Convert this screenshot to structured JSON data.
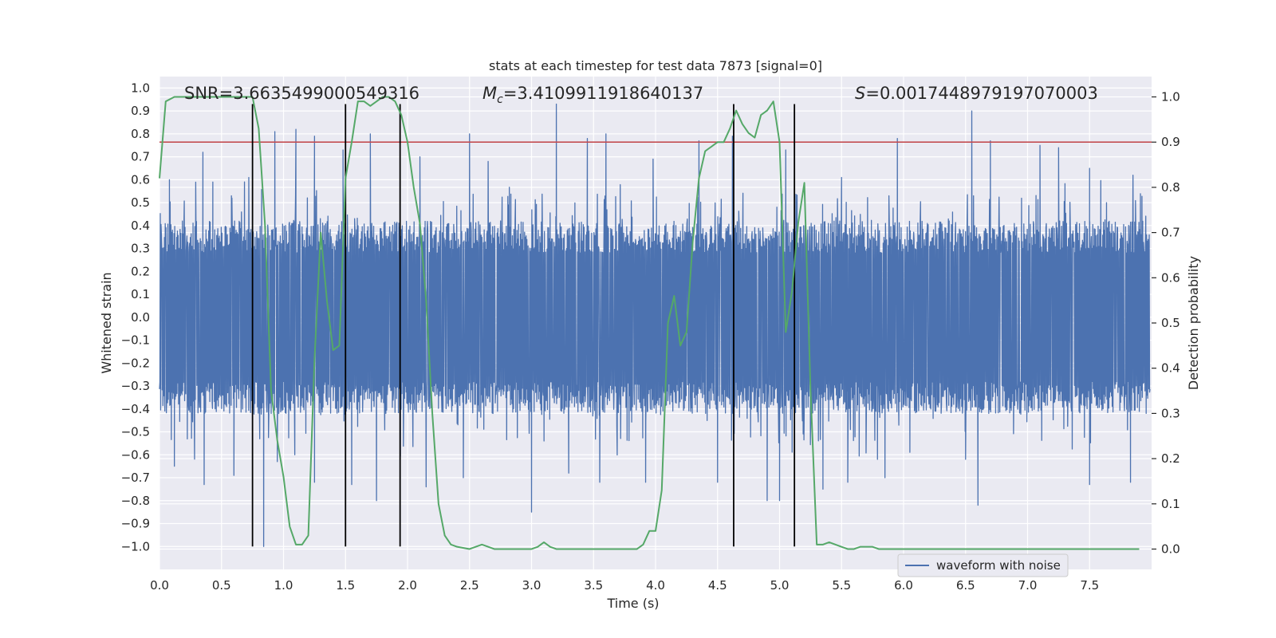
{
  "chart_data": {
    "type": "line",
    "title": "stats at each timestep for test data 7873 [signal=0]",
    "xlabel": "Time (s)",
    "ylabel": "Whitened strain",
    "y2label": "Detection probability",
    "xlim": [
      0.0,
      8.0
    ],
    "ylim": [
      -1.1,
      1.05
    ],
    "y2lim": [
      -0.045,
      1.045
    ],
    "xticks": [
      0.0,
      0.5,
      1.0,
      1.5,
      2.0,
      2.5,
      3.0,
      3.5,
      4.0,
      4.5,
      5.0,
      5.5,
      6.0,
      6.5,
      7.0,
      7.5
    ],
    "xtick_labels": [
      "0.0",
      "0.5",
      "1.0",
      "1.5",
      "2.0",
      "2.5",
      "3.0",
      "3.5",
      "4.0",
      "4.5",
      "5.0",
      "5.5",
      "6.0",
      "6.5",
      "7.0",
      "7.5"
    ],
    "yticks": [
      1.0,
      0.9,
      0.8,
      0.7,
      0.6,
      0.5,
      0.4,
      0.3,
      0.2,
      0.1,
      0.0,
      -0.1,
      -0.2,
      -0.3,
      -0.4,
      -0.5,
      -0.6,
      -0.7,
      -0.8,
      -0.9,
      -1.0
    ],
    "ytick_labels": [
      "1.0",
      "0.9",
      "0.8",
      "0.7",
      "0.6",
      "0.5",
      "0.4",
      "0.3",
      "0.2",
      "0.1",
      "0.0",
      "−0.1",
      "−0.2",
      "−0.3",
      "−0.4",
      "−0.5",
      "−0.6",
      "−0.7",
      "−0.8",
      "−0.9",
      "−1.0"
    ],
    "y2ticks": [
      1.0,
      0.9,
      0.8,
      0.7,
      0.6,
      0.5,
      0.4,
      0.3,
      0.2,
      0.1,
      0.0
    ],
    "y2tick_labels": [
      "1.0",
      "0.9",
      "0.8",
      "0.7",
      "0.6",
      "0.5",
      "0.4",
      "0.3",
      "0.2",
      "0.1",
      "0.0"
    ],
    "annotations": {
      "snr": "SNR=3.6635499000549316",
      "mc_symbol": "M",
      "mc_subscript": "c",
      "mc_value": "=3.4109911918640137",
      "s_symbol": "S",
      "s_value": "=0.0017448979197070003"
    },
    "threshold": {
      "value": 0.9,
      "color": "#c44e52",
      "axis": "right"
    },
    "vertical_lines": [
      0.75,
      1.5,
      1.94,
      4.63,
      5.12
    ],
    "vertical_line_range": [
      -1.0,
      0.93
    ],
    "legend": {
      "label": "waveform with noise",
      "location": "lower-right"
    },
    "colors": {
      "waveform": "#4c72b0",
      "probability": "#55a868",
      "vlines": "#000000",
      "background": "#eaeaf2",
      "grid": "#ffffff"
    },
    "waveform": {
      "name": "waveform with noise",
      "description_of_sampling": "noise; band roughly -0.45..0.45 with spikes",
      "peaks": [
        {
          "t": 0.08,
          "v": 0.6
        },
        {
          "t": 0.35,
          "v": 0.72
        },
        {
          "t": 0.43,
          "v": 0.59
        },
        {
          "t": 0.58,
          "v": 0.53
        },
        {
          "t": 0.72,
          "v": 0.61
        },
        {
          "t": 0.93,
          "v": 0.81
        },
        {
          "t": 1.1,
          "v": 0.82
        },
        {
          "t": 1.25,
          "v": 0.79
        },
        {
          "t": 1.48,
          "v": 0.73
        },
        {
          "t": 1.7,
          "v": 0.8
        },
        {
          "t": 2.1,
          "v": 0.7
        },
        {
          "t": 2.5,
          "v": 0.8
        },
        {
          "t": 2.65,
          "v": 0.68
        },
        {
          "t": 3.2,
          "v": 0.93
        },
        {
          "t": 3.45,
          "v": 0.78
        },
        {
          "t": 3.6,
          "v": 0.8
        },
        {
          "t": 3.98,
          "v": 0.69
        },
        {
          "t": 4.35,
          "v": 0.77
        },
        {
          "t": 4.62,
          "v": 0.79
        },
        {
          "t": 5.05,
          "v": 0.73
        },
        {
          "t": 5.5,
          "v": 0.61
        },
        {
          "t": 5.95,
          "v": 0.78
        },
        {
          "t": 6.55,
          "v": 0.9
        },
        {
          "t": 6.7,
          "v": 0.77
        },
        {
          "t": 7.1,
          "v": 0.75
        },
        {
          "t": 7.25,
          "v": 0.74
        },
        {
          "t": 7.5,
          "v": 0.65
        },
        {
          "t": 7.85,
          "v": 0.62
        }
      ],
      "troughs": [
        {
          "t": 0.12,
          "v": -0.65
        },
        {
          "t": 0.36,
          "v": -0.73
        },
        {
          "t": 0.6,
          "v": -0.69
        },
        {
          "t": 0.84,
          "v": -1.0
        },
        {
          "t": 0.95,
          "v": -0.63
        },
        {
          "t": 1.25,
          "v": -0.72
        },
        {
          "t": 1.55,
          "v": -0.73
        },
        {
          "t": 1.75,
          "v": -0.8
        },
        {
          "t": 2.15,
          "v": -0.74
        },
        {
          "t": 2.45,
          "v": -0.7
        },
        {
          "t": 3.0,
          "v": -0.85
        },
        {
          "t": 3.3,
          "v": -0.68
        },
        {
          "t": 3.55,
          "v": -0.72
        },
        {
          "t": 3.92,
          "v": -0.72
        },
        {
          "t": 4.5,
          "v": -0.72
        },
        {
          "t": 4.9,
          "v": -0.8
        },
        {
          "t": 5.0,
          "v": -0.8
        },
        {
          "t": 5.35,
          "v": -0.75
        },
        {
          "t": 5.55,
          "v": -0.72
        },
        {
          "t": 5.85,
          "v": -0.7
        },
        {
          "t": 6.5,
          "v": -0.62
        },
        {
          "t": 6.6,
          "v": -0.82
        },
        {
          "t": 7.5,
          "v": -0.73
        },
        {
          "t": 7.83,
          "v": -0.72
        }
      ]
    },
    "probability": {
      "name": "Detection probability",
      "x": [
        0.0,
        0.05,
        0.12,
        0.2,
        0.3,
        0.4,
        0.5,
        0.6,
        0.7,
        0.75,
        0.8,
        0.85,
        0.9,
        0.95,
        1.0,
        1.05,
        1.1,
        1.15,
        1.2,
        1.25,
        1.3,
        1.35,
        1.4,
        1.45,
        1.5,
        1.55,
        1.6,
        1.65,
        1.7,
        1.75,
        1.8,
        1.85,
        1.9,
        1.95,
        2.0,
        2.05,
        2.1,
        2.15,
        2.2,
        2.25,
        2.3,
        2.35,
        2.4,
        2.5,
        2.6,
        2.7,
        2.75,
        2.8,
        2.9,
        3.0,
        3.05,
        3.1,
        3.15,
        3.2,
        3.3,
        3.4,
        3.5,
        3.6,
        3.7,
        3.75,
        3.8,
        3.85,
        3.9,
        3.95,
        4.0,
        4.05,
        4.1,
        4.15,
        4.2,
        4.25,
        4.3,
        4.35,
        4.4,
        4.45,
        4.5,
        4.55,
        4.6,
        4.65,
        4.7,
        4.75,
        4.8,
        4.85,
        4.9,
        4.95,
        5.0,
        5.05,
        5.1,
        5.15,
        5.2,
        5.25,
        5.3,
        5.35,
        5.4,
        5.45,
        5.5,
        5.55,
        5.6,
        5.65,
        5.7,
        5.75,
        5.8,
        5.9,
        6.0,
        6.2,
        6.5,
        7.0,
        7.3,
        7.5,
        7.9
      ],
      "values": [
        0.82,
        0.99,
        1.0,
        1.0,
        1.0,
        1.0,
        1.0,
        1.0,
        1.0,
        1.0,
        0.93,
        0.72,
        0.35,
        0.24,
        0.16,
        0.05,
        0.01,
        0.01,
        0.03,
        0.42,
        0.7,
        0.55,
        0.44,
        0.45,
        0.82,
        0.9,
        0.99,
        0.99,
        0.98,
        0.99,
        1.0,
        1.0,
        0.99,
        0.96,
        0.9,
        0.8,
        0.72,
        0.55,
        0.3,
        0.1,
        0.03,
        0.01,
        0.005,
        0.0,
        0.01,
        0.0,
        0.0,
        0.0,
        0.0,
        0.0,
        0.005,
        0.015,
        0.005,
        0.0,
        0.0,
        0.0,
        0.0,
        0.0,
        0.0,
        0.0,
        0.0,
        0.0,
        0.01,
        0.04,
        0.04,
        0.13,
        0.5,
        0.56,
        0.45,
        0.48,
        0.68,
        0.82,
        0.88,
        0.89,
        0.9,
        0.9,
        0.93,
        0.97,
        0.94,
        0.92,
        0.91,
        0.96,
        0.97,
        0.99,
        0.9,
        0.48,
        0.57,
        0.72,
        0.81,
        0.35,
        0.01,
        0.01,
        0.015,
        0.01,
        0.005,
        0.0,
        0.0,
        0.005,
        0.005,
        0.005,
        0.0,
        0.0,
        0.0,
        0.0,
        0.0,
        0.0,
        0.0,
        0.0,
        0.0
      ]
    }
  }
}
